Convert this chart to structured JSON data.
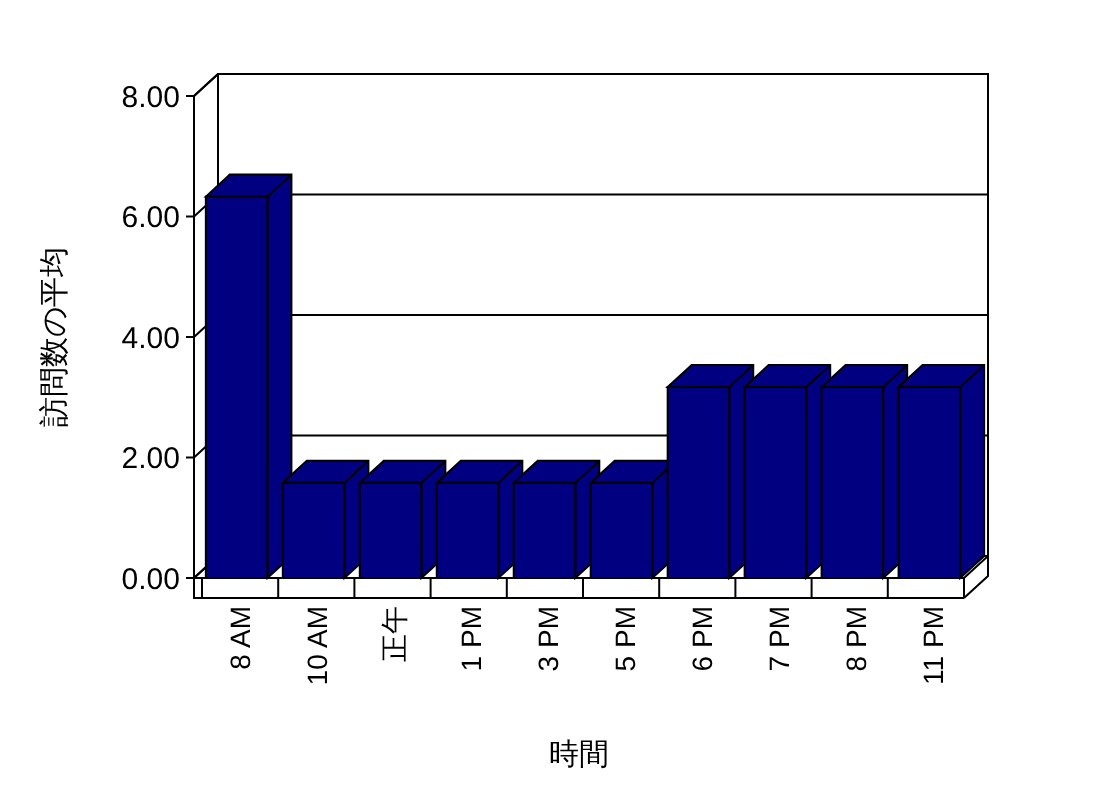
{
  "chart_data": {
    "type": "bar",
    "xlabel": "時間",
    "ylabel": "訪問数の平均",
    "categories": [
      "8 AM",
      "10 AM",
      "正午",
      "1 PM",
      "3 PM",
      "5 PM",
      "6 PM",
      "7 PM",
      "8 PM",
      "11 PM"
    ],
    "values": [
      6.33,
      1.58,
      1.58,
      1.58,
      1.58,
      1.58,
      3.17,
      3.17,
      3.17,
      3.17
    ],
    "color": "#000080",
    "ylim": [
      0,
      8
    ],
    "yticks": [
      {
        "value": 0,
        "label": "0.00"
      },
      {
        "value": 2,
        "label": "2.00"
      },
      {
        "value": 4,
        "label": "4.00"
      },
      {
        "value": 6,
        "label": "6.00"
      },
      {
        "value": 8,
        "label": "8.00"
      }
    ],
    "grid": "y"
  }
}
